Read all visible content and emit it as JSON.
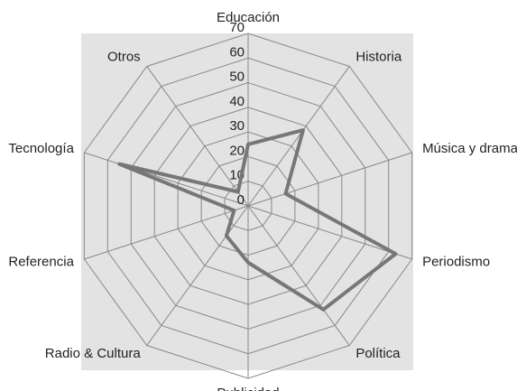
{
  "chart_data": {
    "type": "radar",
    "categories": [
      "Educación",
      "Historia",
      "Música y drama",
      "Periodismo",
      "Política",
      "Publicidad",
      "Radio & Cultura",
      "Referencia",
      "Tecnología",
      "Otros"
    ],
    "values": [
      25,
      38,
      16,
      63,
      52,
      23,
      15,
      6,
      55,
      7
    ],
    "color": "#777777",
    "ylim": [
      0,
      70
    ],
    "yticks": [
      0,
      10,
      20,
      30,
      40,
      50,
      60,
      70
    ],
    "grid": true
  }
}
